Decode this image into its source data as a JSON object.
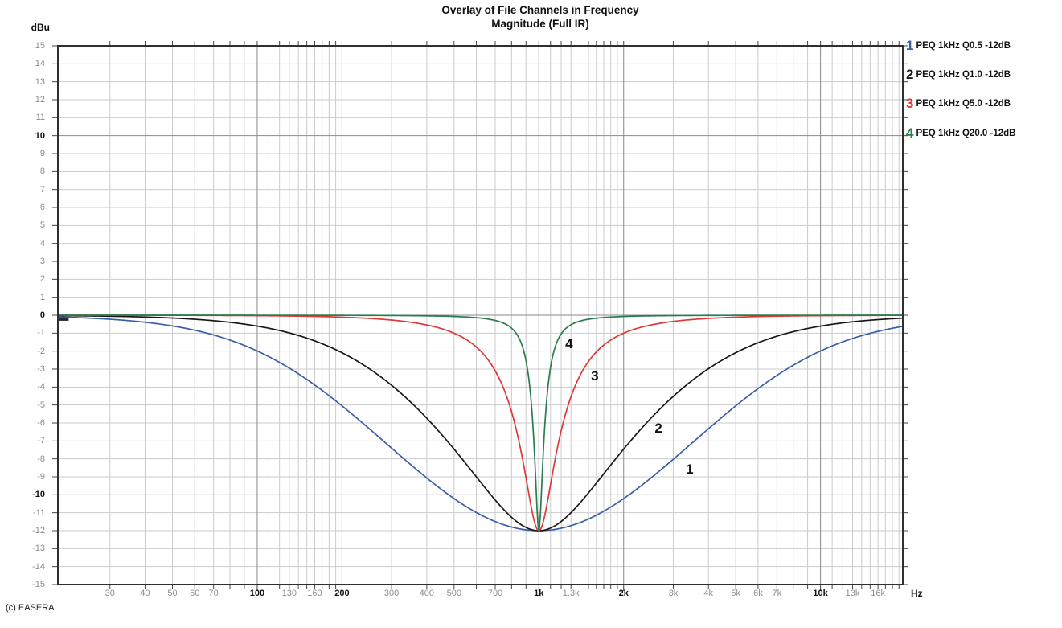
{
  "title": {
    "line1": "Overlay of File Channels in Frequency",
    "line2": "Magnitude (Full IR)"
  },
  "y_axis": {
    "unit_label": "dBu",
    "min": -15,
    "max": 15,
    "step": 1,
    "bold_values": [
      10,
      0,
      -10
    ],
    "major_gridline_db": [
      10,
      0,
      -10
    ]
  },
  "x_axis": {
    "unit_label": "Hz",
    "scale": "log",
    "min_hz": 19.6,
    "max_hz": 19600,
    "major_gridline_hz": [
      100,
      200,
      1000,
      2000,
      10000
    ],
    "ticks": [
      {
        "f": 30,
        "label": "30",
        "bold": false
      },
      {
        "f": 40,
        "label": "40",
        "bold": false
      },
      {
        "f": 50,
        "label": "50",
        "bold": false
      },
      {
        "f": 60,
        "label": "60",
        "bold": false
      },
      {
        "f": 70,
        "label": "70",
        "bold": false
      },
      {
        "f": 100,
        "label": "100",
        "bold": true
      },
      {
        "f": 130,
        "label": "130",
        "bold": false
      },
      {
        "f": 160,
        "label": "160",
        "bold": false
      },
      {
        "f": 200,
        "label": "200",
        "bold": true
      },
      {
        "f": 300,
        "label": "300",
        "bold": false
      },
      {
        "f": 400,
        "label": "400",
        "bold": false
      },
      {
        "f": 500,
        "label": "500",
        "bold": false
      },
      {
        "f": 700,
        "label": "700",
        "bold": false
      },
      {
        "f": 1000,
        "label": "1k",
        "bold": true
      },
      {
        "f": 1300,
        "label": "1.3k",
        "bold": false
      },
      {
        "f": 2000,
        "label": "2k",
        "bold": true
      },
      {
        "f": 3000,
        "label": "3k",
        "bold": false
      },
      {
        "f": 4000,
        "label": "4k",
        "bold": false
      },
      {
        "f": 5000,
        "label": "5k",
        "bold": false
      },
      {
        "f": 6000,
        "label": "6k",
        "bold": false
      },
      {
        "f": 7000,
        "label": "7k",
        "bold": false
      },
      {
        "f": 10000,
        "label": "10k",
        "bold": true
      },
      {
        "f": 13000,
        "label": "13k",
        "bold": false
      },
      {
        "f": 16000,
        "label": "16k",
        "bold": false
      }
    ]
  },
  "legend": [
    {
      "num": "1",
      "color": "#3A5FA6",
      "label": "PEQ 1kHz Q0.5 -12dB"
    },
    {
      "num": "2",
      "color": "#181818",
      "label": "PEQ 1kHz Q1.0 -12dB"
    },
    {
      "num": "3",
      "color": "#DE3838",
      "label": "PEQ 1kHz Q5.0 -12dB"
    },
    {
      "num": "4",
      "color": "#2A7C4F",
      "label": "PEQ 1kHz Q20.0 -12dB"
    }
  ],
  "footer": {
    "credit": "(c) EASERA"
  },
  "colors": {
    "grid_minor": "#cbcbcb",
    "grid_major": "#8a8a8a",
    "plot_border": "#2f2f2f",
    "tick": "#444444",
    "label_gray": "#8d8d8d",
    "label_black": "#111111"
  },
  "chart_data": {
    "type": "line",
    "title": "Overlay of File Channels in Frequency — Magnitude (Full IR)",
    "xlabel": "Hz",
    "ylabel": "dBu",
    "x_scale": "log",
    "x_range_hz": [
      19.6,
      19600
    ],
    "y_range_db": [
      -15,
      15
    ],
    "grid": true,
    "legend_position": "top-right",
    "curve_model": "parametric EQ cut: dB(f)=10*log10((u^2+(1/Q)^2)/(u^2+(10^(-gain_db/20)/Q)^2)), u=f/f0-f0/f",
    "sample_freqs_hz": [
      20,
      100,
      200,
      500,
      700,
      1000,
      1500,
      2000,
      5000,
      10000,
      20000
    ],
    "series": [
      {
        "name": "PEQ 1kHz Q0.5 -12dB",
        "color": "#3A5FA6",
        "f0_hz": 1000,
        "q": 0.5,
        "gain_db": -12,
        "sampled_db": [
          -0.1,
          -2.0,
          -5.1,
          -10.2,
          -11.5,
          -12.0,
          -11.4,
          -10.2,
          -5.1,
          -2.0,
          -0.1
        ],
        "curve_label": {
          "text": "1",
          "f_hz": 3430,
          "db": -8.6
        }
      },
      {
        "name": "PEQ 1kHz Q1.0 -12dB",
        "color": "#181818",
        "f0_hz": 1000,
        "q": 1.0,
        "gain_db": -12,
        "sampled_db": [
          0.0,
          -0.6,
          -2.1,
          -7.5,
          -10.3,
          -12.0,
          -9.9,
          -7.5,
          -2.1,
          -0.6,
          -0.2
        ],
        "curve_label": {
          "text": "2",
          "f_hz": 2660,
          "db": -6.3
        }
      },
      {
        "name": "PEQ 1kHz Q5.0 -12dB",
        "color": "#DE3838",
        "f0_hz": 1000,
        "q": 5.0,
        "gain_db": -12,
        "sampled_db": [
          0.0,
          0.0,
          -0.1,
          -1.0,
          -3.1,
          -12.0,
          -2.6,
          -1.0,
          -0.1,
          0.0,
          0.0
        ],
        "curve_label": {
          "text": "3",
          "f_hz": 1580,
          "db": -3.4
        }
      },
      {
        "name": "PEQ 1kHz Q20.0 -12dB",
        "color": "#2A7C4F",
        "f0_hz": 1000,
        "q": 20.0,
        "gain_db": -12,
        "sampled_db": [
          0.0,
          0.0,
          0.0,
          -0.1,
          -0.3,
          -12.0,
          -0.2,
          -0.1,
          0.0,
          0.0,
          0.0
        ],
        "curve_label": {
          "text": "4",
          "f_hz": 1280,
          "db": -1.6
        }
      }
    ],
    "edge_marker": {
      "f_from_hz": 19.6,
      "f_to_hz": 21.4,
      "db": -0.22,
      "color": "#202b3a"
    }
  }
}
